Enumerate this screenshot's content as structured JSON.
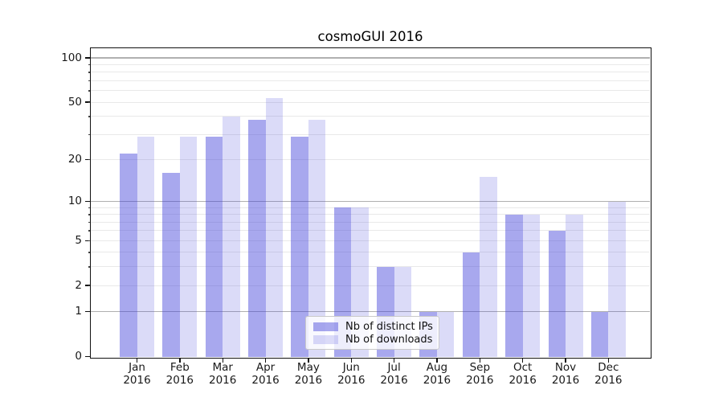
{
  "title": "cosmoGUI 2016",
  "chart_data": {
    "type": "bar",
    "title": "cosmoGUI 2016",
    "x_categories": [
      "Jan 2016",
      "Feb 2016",
      "Mar 2016",
      "Apr 2016",
      "May 2016",
      "Jun 2016",
      "Jul 2016",
      "Aug 2016",
      "Sep 2016",
      "Oct 2016",
      "Nov 2016",
      "Dec 2016"
    ],
    "x_tick_months": [
      "Jan",
      "Feb",
      "Mar",
      "Apr",
      "May",
      "Jun",
      "Jul",
      "Aug",
      "Sep",
      "Oct",
      "Nov",
      "Dec"
    ],
    "x_tick_year": "2016",
    "series": [
      {
        "name": "Nb of distinct IPs",
        "color": "rgba(62,62,217,0.45)",
        "values": [
          22,
          16,
          29,
          38,
          29,
          9,
          3,
          1,
          4,
          8,
          6,
          1
        ]
      },
      {
        "name": "Nb of downloads",
        "color": "rgba(75,75,220,0.20)",
        "values": [
          29,
          29,
          40,
          53,
          38,
          9,
          3,
          1,
          15,
          8,
          8,
          10
        ]
      }
    ],
    "y_axis": {
      "scale": "log(1+y)",
      "tick_labels": [
        "100",
        "50",
        "20",
        "10",
        "5",
        "2",
        "1",
        "0"
      ],
      "tick_values": [
        100,
        50,
        20,
        10,
        5,
        2,
        1,
        0
      ],
      "major_grid_values": [
        1,
        10,
        100
      ],
      "minor_grid_values": [
        2,
        3,
        4,
        5,
        6,
        7,
        8,
        9,
        20,
        30,
        40,
        50,
        60,
        70,
        80,
        90
      ],
      "ylim": [
        0,
        117
      ]
    },
    "legend": {
      "labels": [
        "Nb of distinct IPs",
        "Nb of downloads"
      ],
      "position": "lower center"
    },
    "grid": true,
    "colors": {
      "major_grid": "#b0b0b0",
      "minor_grid": "#e9e9e9",
      "spine": "#111111",
      "text": "#191919"
    }
  }
}
